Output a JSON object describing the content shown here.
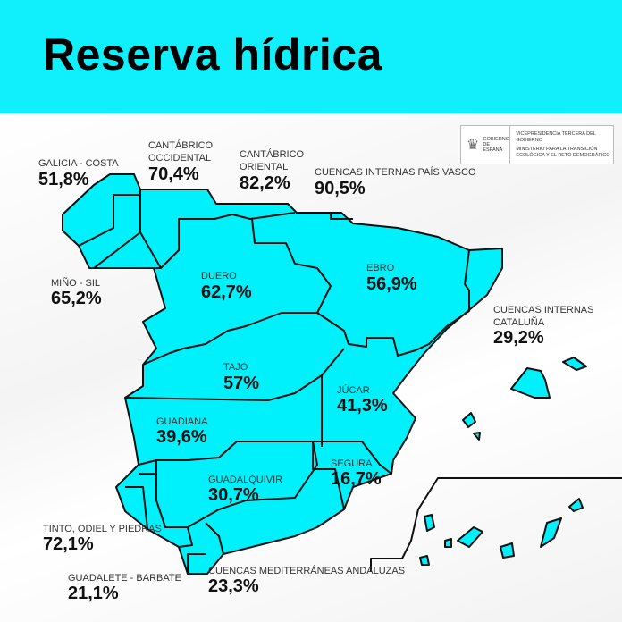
{
  "title": "Reserva hídrica",
  "fill_color": "#00f0fc",
  "logo": {
    "left": "GOBIERNO DE ESPAÑA",
    "line1": "VICEPRESIDENCIA TERCERA DEL GOBIERNO",
    "line2": "MINISTERIO PARA LA TRANSICIÓN ECOLÓGICA Y EL RETO DEMOGRÁFICO"
  },
  "basins": [
    {
      "name": "GALICIA - COSTA",
      "value": "51,8%"
    },
    {
      "name": "CANTÁBRICO OCCIDENTAL",
      "value": "70,4%"
    },
    {
      "name": "CANTÁBRICO ORIENTAL",
      "value": "82,2%"
    },
    {
      "name": "CUENCAS INTERNAS PAÍS VASCO",
      "value": "90,5%"
    },
    {
      "name": "MIÑO - SIL",
      "value": "65,2%"
    },
    {
      "name": "DUERO",
      "value": "62,7%"
    },
    {
      "name": "EBRO",
      "value": "56,9%"
    },
    {
      "name": "CUENCAS INTERNAS CATALUÑA",
      "value": "29,2%"
    },
    {
      "name": "TAJO",
      "value": "57%"
    },
    {
      "name": "JÚCAR",
      "value": "41,3%"
    },
    {
      "name": "GUADIANA",
      "value": "39,6%"
    },
    {
      "name": "SEGURA",
      "value": "16,7%"
    },
    {
      "name": "GUADALQUIVIR",
      "value": "30,7%"
    },
    {
      "name": "TINTO, ODIEL Y PIEDRAS",
      "value": "72,1%"
    },
    {
      "name": "GUADALETE - BARBATE",
      "value": "21,1%"
    },
    {
      "name": "CUENCAS MEDITERRÁNEAS ANDALUZAS",
      "value": "23,3%"
    }
  ]
}
